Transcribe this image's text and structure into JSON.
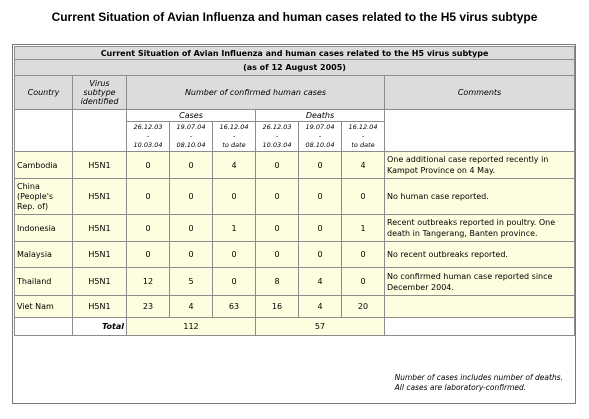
{
  "page_title": "Current Situation of Avian Influenza and human cases related to the H5 virus subtype",
  "table": {
    "caption": "Current Situation of Avian Influenza and human cases related to the H5 virus subtype",
    "as_of": "(as of 12 August 2005)",
    "headers": {
      "country": "Country",
      "subtype": "Virus subtype identified",
      "confirmed": "Number of confirmed human cases",
      "comments": "Comments",
      "cases": "Cases",
      "deaths": "Deaths",
      "periods": [
        {
          "from": "26.12.03",
          "dash": "-",
          "to": "10.03.04"
        },
        {
          "from": "19.07.04",
          "dash": "-",
          "to": "08.10.04"
        },
        {
          "from": "16.12.04",
          "dash": "-",
          "to": "to date"
        }
      ]
    },
    "rows": [
      {
        "country": "Cambodia",
        "subtype": "H5N1",
        "cases": [
          "0",
          "0",
          "4"
        ],
        "deaths": [
          "0",
          "0",
          "4"
        ],
        "comment": "One additional case reported recently in Kampot Province on 4 May."
      },
      {
        "country": "China (People's Rep. of)",
        "subtype": "H5N1",
        "cases": [
          "0",
          "0",
          "0"
        ],
        "deaths": [
          "0",
          "0",
          "0"
        ],
        "comment": "No human case reported."
      },
      {
        "country": "Indonesia",
        "subtype": "H5N1",
        "cases": [
          "0",
          "0",
          "1"
        ],
        "deaths": [
          "0",
          "0",
          "1"
        ],
        "comment": "Recent outbreaks reported in poultry. One death in Tangerang, Banten province."
      },
      {
        "country": "Malaysia",
        "subtype": "H5N1",
        "cases": [
          "0",
          "0",
          "0"
        ],
        "deaths": [
          "0",
          "0",
          "0"
        ],
        "comment": "No recent outbreaks reported."
      },
      {
        "country": "Thailand",
        "subtype": "H5N1",
        "cases": [
          "12",
          "5",
          "0"
        ],
        "deaths": [
          "8",
          "4",
          "0"
        ],
        "comment": "No confirmed human case reported since December 2004."
      },
      {
        "country": "Viet Nam",
        "subtype": "H5N1",
        "cases": [
          "23",
          "4",
          "63"
        ],
        "deaths": [
          "16",
          "4",
          "20"
        ],
        "comment": ""
      }
    ],
    "total_label": "Total",
    "total_cases": "112",
    "total_deaths": "57"
  },
  "notes": [
    "Number of cases includes number of deaths.",
    "All cases are laboratory-confirmed."
  ],
  "colors": {
    "header_bg": "#dcdcdc",
    "data_bg": "#fdfddf",
    "border": "#8c8c8c"
  }
}
